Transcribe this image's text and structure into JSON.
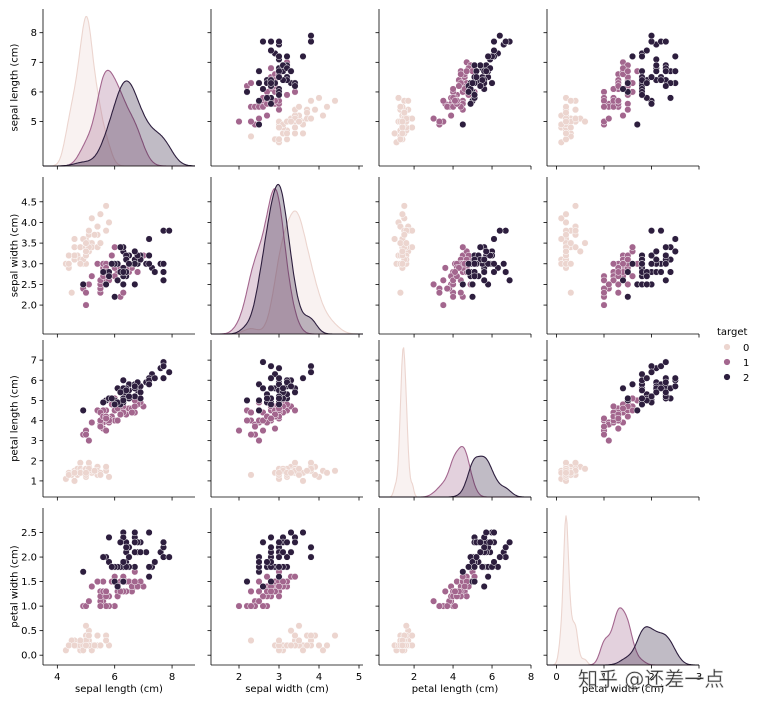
{
  "chart_data": {
    "type": "scatter",
    "variables": [
      "sepal length (cm)",
      "sepal width (cm)",
      "petal length (cm)",
      "petal width (cm)"
    ],
    "hue": "target",
    "diagonal": "kde",
    "legend": {
      "title": "target",
      "labels": [
        "0",
        "1",
        "2"
      ],
      "placement": "right"
    },
    "colors": {
      "0": "#ecd5cf",
      "1": "#a3668e",
      "2": "#2d1e3e"
    },
    "limits": {
      "sepal length (cm)": [
        3.5,
        8.8
      ],
      "sepal width (cm)": [
        1.3,
        5.1
      ],
      "petal length (cm)": [
        0.2,
        8.0
      ],
      "petal width (cm)": [
        -0.2,
        3.0
      ]
    },
    "ticks": {
      "sepal length (cm)": {
        "row": [
          5,
          6,
          7,
          8
        ],
        "col": [
          4,
          6,
          8
        ]
      },
      "sepal width (cm)": {
        "row": [
          2.0,
          2.5,
          3.0,
          3.5,
          4.0,
          4.5
        ],
        "col": [
          2,
          3,
          4,
          5
        ]
      },
      "petal length (cm)": {
        "row": [
          1,
          2,
          3,
          4,
          5,
          6,
          7
        ],
        "col": [
          2,
          4,
          6,
          8
        ]
      },
      "petal width (cm)": {
        "row": [
          0.0,
          0.5,
          1.0,
          1.5,
          2.0,
          2.5
        ],
        "col": [
          0,
          1,
          2,
          3
        ]
      }
    },
    "tick_labels": {
      "sepal length (cm)": {
        "row": [
          "5",
          "6",
          "7",
          "8"
        ],
        "col": [
          "4",
          "6",
          "8"
        ]
      },
      "sepal width (cm)": {
        "row": [
          "2.0",
          "2.5",
          "3.0",
          "3.5",
          "4.0",
          "4.5"
        ],
        "col": [
          "2",
          "3",
          "4",
          "5"
        ]
      },
      "petal length (cm)": {
        "row": [
          "1",
          "2",
          "3",
          "4",
          "5",
          "6",
          "7"
        ],
        "col": [
          "2",
          "4",
          "6",
          "8"
        ]
      },
      "petal width (cm)": {
        "row": [
          "0.0",
          "0.5",
          "1.0",
          "1.5",
          "2.0",
          "2.5"
        ],
        "col": [
          "0",
          "1",
          "2",
          "3"
        ]
      }
    },
    "data": [
      [
        5.1,
        3.5,
        1.4,
        0.2,
        0
      ],
      [
        4.9,
        3.0,
        1.4,
        0.2,
        0
      ],
      [
        4.7,
        3.2,
        1.3,
        0.2,
        0
      ],
      [
        4.6,
        3.1,
        1.5,
        0.2,
        0
      ],
      [
        5.0,
        3.6,
        1.4,
        0.2,
        0
      ],
      [
        5.4,
        3.9,
        1.7,
        0.4,
        0
      ],
      [
        4.6,
        3.4,
        1.4,
        0.3,
        0
      ],
      [
        5.0,
        3.4,
        1.5,
        0.2,
        0
      ],
      [
        4.4,
        2.9,
        1.4,
        0.2,
        0
      ],
      [
        4.9,
        3.1,
        1.5,
        0.1,
        0
      ],
      [
        5.4,
        3.7,
        1.5,
        0.2,
        0
      ],
      [
        4.8,
        3.4,
        1.6,
        0.2,
        0
      ],
      [
        4.8,
        3.0,
        1.4,
        0.1,
        0
      ],
      [
        4.3,
        3.0,
        1.1,
        0.1,
        0
      ],
      [
        5.8,
        4.0,
        1.2,
        0.2,
        0
      ],
      [
        5.7,
        4.4,
        1.5,
        0.4,
        0
      ],
      [
        5.4,
        3.9,
        1.3,
        0.4,
        0
      ],
      [
        5.1,
        3.5,
        1.4,
        0.3,
        0
      ],
      [
        5.7,
        3.8,
        1.7,
        0.3,
        0
      ],
      [
        5.1,
        3.8,
        1.5,
        0.3,
        0
      ],
      [
        5.4,
        3.4,
        1.7,
        0.2,
        0
      ],
      [
        5.1,
        3.7,
        1.5,
        0.4,
        0
      ],
      [
        4.6,
        3.6,
        1.0,
        0.2,
        0
      ],
      [
        5.1,
        3.3,
        1.7,
        0.5,
        0
      ],
      [
        4.8,
        3.4,
        1.9,
        0.2,
        0
      ],
      [
        5.0,
        3.0,
        1.6,
        0.2,
        0
      ],
      [
        5.0,
        3.4,
        1.6,
        0.4,
        0
      ],
      [
        5.2,
        3.5,
        1.5,
        0.2,
        0
      ],
      [
        5.2,
        3.4,
        1.4,
        0.2,
        0
      ],
      [
        4.7,
        3.2,
        1.6,
        0.2,
        0
      ],
      [
        4.8,
        3.1,
        1.6,
        0.2,
        0
      ],
      [
        5.4,
        3.4,
        1.5,
        0.4,
        0
      ],
      [
        5.2,
        4.1,
        1.5,
        0.1,
        0
      ],
      [
        5.5,
        4.2,
        1.4,
        0.2,
        0
      ],
      [
        4.9,
        3.1,
        1.5,
        0.2,
        0
      ],
      [
        5.0,
        3.2,
        1.2,
        0.2,
        0
      ],
      [
        5.5,
        3.5,
        1.3,
        0.2,
        0
      ],
      [
        4.9,
        3.6,
        1.4,
        0.1,
        0
      ],
      [
        4.4,
        3.0,
        1.3,
        0.2,
        0
      ],
      [
        5.1,
        3.4,
        1.5,
        0.2,
        0
      ],
      [
        5.0,
        3.5,
        1.3,
        0.3,
        0
      ],
      [
        4.5,
        2.3,
        1.3,
        0.3,
        0
      ],
      [
        4.4,
        3.2,
        1.3,
        0.2,
        0
      ],
      [
        5.0,
        3.5,
        1.6,
        0.6,
        0
      ],
      [
        5.1,
        3.8,
        1.9,
        0.4,
        0
      ],
      [
        4.8,
        3.0,
        1.4,
        0.3,
        0
      ],
      [
        5.1,
        3.8,
        1.6,
        0.2,
        0
      ],
      [
        4.6,
        3.2,
        1.4,
        0.2,
        0
      ],
      [
        5.3,
        3.7,
        1.5,
        0.2,
        0
      ],
      [
        5.0,
        3.3,
        1.4,
        0.2,
        0
      ],
      [
        7.0,
        3.2,
        4.7,
        1.4,
        1
      ],
      [
        6.4,
        3.2,
        4.5,
        1.5,
        1
      ],
      [
        6.9,
        3.1,
        4.9,
        1.5,
        1
      ],
      [
        5.5,
        2.3,
        4.0,
        1.3,
        1
      ],
      [
        6.5,
        2.8,
        4.6,
        1.5,
        1
      ],
      [
        5.7,
        2.8,
        4.5,
        1.3,
        1
      ],
      [
        6.3,
        3.3,
        4.7,
        1.6,
        1
      ],
      [
        4.9,
        2.4,
        3.3,
        1.0,
        1
      ],
      [
        6.6,
        2.9,
        4.6,
        1.3,
        1
      ],
      [
        5.2,
        2.7,
        3.9,
        1.4,
        1
      ],
      [
        5.0,
        2.0,
        3.5,
        1.0,
        1
      ],
      [
        5.9,
        3.0,
        4.2,
        1.5,
        1
      ],
      [
        6.0,
        2.2,
        4.0,
        1.0,
        1
      ],
      [
        6.1,
        2.9,
        4.7,
        1.4,
        1
      ],
      [
        5.6,
        2.9,
        3.6,
        1.3,
        1
      ],
      [
        6.7,
        3.1,
        4.4,
        1.4,
        1
      ],
      [
        5.6,
        3.0,
        4.5,
        1.5,
        1
      ],
      [
        5.8,
        2.7,
        4.1,
        1.0,
        1
      ],
      [
        6.2,
        2.2,
        4.5,
        1.5,
        1
      ],
      [
        5.6,
        2.5,
        3.9,
        1.1,
        1
      ],
      [
        5.9,
        3.2,
        4.8,
        1.8,
        1
      ],
      [
        6.1,
        2.8,
        4.0,
        1.3,
        1
      ],
      [
        6.3,
        2.5,
        4.9,
        1.5,
        1
      ],
      [
        6.1,
        2.8,
        4.7,
        1.2,
        1
      ],
      [
        6.4,
        2.9,
        4.3,
        1.3,
        1
      ],
      [
        6.6,
        3.0,
        4.4,
        1.4,
        1
      ],
      [
        6.8,
        2.8,
        4.8,
        1.4,
        1
      ],
      [
        6.7,
        3.0,
        5.0,
        1.7,
        1
      ],
      [
        6.0,
        2.9,
        4.5,
        1.5,
        1
      ],
      [
        5.7,
        2.6,
        3.5,
        1.0,
        1
      ],
      [
        5.5,
        2.4,
        3.8,
        1.1,
        1
      ],
      [
        5.5,
        2.4,
        3.7,
        1.0,
        1
      ],
      [
        5.8,
        2.7,
        3.9,
        1.2,
        1
      ],
      [
        6.0,
        2.7,
        5.1,
        1.6,
        1
      ],
      [
        5.4,
        3.0,
        4.5,
        1.5,
        1
      ],
      [
        6.0,
        3.4,
        4.5,
        1.6,
        1
      ],
      [
        6.7,
        3.1,
        4.7,
        1.5,
        1
      ],
      [
        6.3,
        2.3,
        4.4,
        1.3,
        1
      ],
      [
        5.6,
        3.0,
        4.1,
        1.3,
        1
      ],
      [
        5.5,
        2.5,
        4.0,
        1.3,
        1
      ],
      [
        5.5,
        2.6,
        4.4,
        1.2,
        1
      ],
      [
        6.1,
        3.0,
        4.6,
        1.4,
        1
      ],
      [
        5.8,
        2.6,
        4.0,
        1.2,
        1
      ],
      [
        5.0,
        2.3,
        3.3,
        1.0,
        1
      ],
      [
        5.6,
        2.7,
        4.2,
        1.3,
        1
      ],
      [
        5.7,
        3.0,
        4.2,
        1.2,
        1
      ],
      [
        5.7,
        2.9,
        4.2,
        1.3,
        1
      ],
      [
        6.2,
        2.9,
        4.3,
        1.3,
        1
      ],
      [
        5.1,
        2.5,
        3.0,
        1.1,
        1
      ],
      [
        5.7,
        2.8,
        4.1,
        1.3,
        1
      ],
      [
        6.3,
        3.3,
        6.0,
        2.5,
        2
      ],
      [
        5.8,
        2.7,
        5.1,
        1.9,
        2
      ],
      [
        7.1,
        3.0,
        5.9,
        2.1,
        2
      ],
      [
        6.3,
        2.9,
        5.6,
        1.8,
        2
      ],
      [
        6.5,
        3.0,
        5.8,
        2.2,
        2
      ],
      [
        7.6,
        3.0,
        6.6,
        2.1,
        2
      ],
      [
        4.9,
        2.5,
        4.5,
        1.7,
        2
      ],
      [
        7.3,
        2.9,
        6.3,
        1.8,
        2
      ],
      [
        6.7,
        2.5,
        5.8,
        1.8,
        2
      ],
      [
        7.2,
        3.6,
        6.1,
        2.5,
        2
      ],
      [
        6.5,
        3.2,
        5.1,
        2.0,
        2
      ],
      [
        6.4,
        2.7,
        5.3,
        1.9,
        2
      ],
      [
        6.8,
        3.0,
        5.5,
        2.1,
        2
      ],
      [
        5.7,
        2.5,
        5.0,
        2.0,
        2
      ],
      [
        5.8,
        2.8,
        5.1,
        2.4,
        2
      ],
      [
        6.4,
        3.2,
        5.3,
        2.3,
        2
      ],
      [
        6.5,
        3.0,
        5.5,
        1.8,
        2
      ],
      [
        7.7,
        3.8,
        6.7,
        2.2,
        2
      ],
      [
        7.7,
        2.6,
        6.9,
        2.3,
        2
      ],
      [
        6.0,
        2.2,
        5.0,
        1.5,
        2
      ],
      [
        6.9,
        3.2,
        5.7,
        2.3,
        2
      ],
      [
        5.6,
        2.8,
        4.9,
        2.0,
        2
      ],
      [
        7.7,
        2.8,
        6.7,
        2.0,
        2
      ],
      [
        6.3,
        2.7,
        4.9,
        1.8,
        2
      ],
      [
        6.7,
        3.3,
        5.7,
        2.1,
        2
      ],
      [
        7.2,
        3.2,
        6.0,
        1.8,
        2
      ],
      [
        6.2,
        2.8,
        4.8,
        1.8,
        2
      ],
      [
        6.1,
        3.0,
        4.9,
        1.8,
        2
      ],
      [
        6.4,
        2.8,
        5.6,
        2.1,
        2
      ],
      [
        7.2,
        3.0,
        5.8,
        1.6,
        2
      ],
      [
        7.4,
        2.8,
        6.1,
        1.9,
        2
      ],
      [
        7.9,
        3.8,
        6.4,
        2.0,
        2
      ],
      [
        6.4,
        2.8,
        5.6,
        2.2,
        2
      ],
      [
        6.3,
        2.8,
        5.1,
        1.5,
        2
      ],
      [
        6.1,
        2.6,
        5.6,
        1.4,
        2
      ],
      [
        7.7,
        3.0,
        6.1,
        2.3,
        2
      ],
      [
        6.3,
        3.4,
        5.6,
        2.4,
        2
      ],
      [
        6.4,
        3.1,
        5.5,
        1.8,
        2
      ],
      [
        6.0,
        3.0,
        4.8,
        1.8,
        2
      ],
      [
        6.9,
        3.1,
        5.4,
        2.1,
        2
      ],
      [
        6.7,
        3.1,
        5.6,
        2.4,
        2
      ],
      [
        6.9,
        3.1,
        5.1,
        2.3,
        2
      ],
      [
        5.8,
        2.7,
        5.1,
        1.9,
        2
      ],
      [
        6.8,
        3.2,
        5.9,
        2.3,
        2
      ],
      [
        6.7,
        3.3,
        5.7,
        2.5,
        2
      ],
      [
        6.7,
        3.0,
        5.2,
        2.3,
        2
      ],
      [
        6.3,
        2.5,
        5.0,
        1.9,
        2
      ],
      [
        6.5,
        3.0,
        5.2,
        2.0,
        2
      ],
      [
        6.2,
        3.4,
        5.4,
        2.3,
        2
      ],
      [
        5.9,
        3.0,
        5.1,
        1.8,
        2
      ]
    ]
  },
  "watermark": "知乎 @还差一点"
}
